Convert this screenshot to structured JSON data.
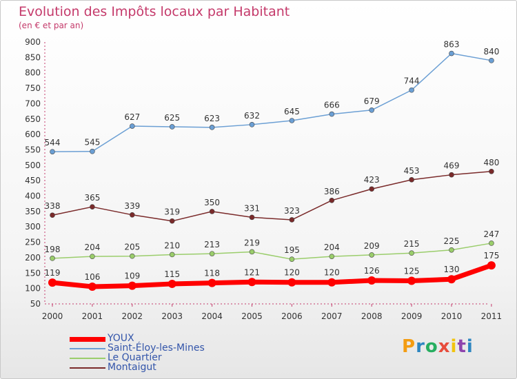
{
  "header": {
    "title": "Evolution des Impôts locaux par Habitant",
    "subtitle": "(en € et par an)"
  },
  "chart_data": {
    "type": "line",
    "title": "Evolution des Impôts locaux par Habitant",
    "subtitle": "(en € et par an)",
    "xlabel": "",
    "ylabel": "",
    "x": [
      "2000",
      "2001",
      "2002",
      "2003",
      "2004",
      "2005",
      "2006",
      "2007",
      "2008",
      "2009",
      "2010",
      "2011"
    ],
    "ylim": [
      50,
      900
    ],
    "yticks": [
      50,
      100,
      150,
      200,
      250,
      300,
      350,
      400,
      450,
      500,
      550,
      600,
      650,
      700,
      750,
      800,
      850,
      900
    ],
    "grid": false,
    "legend_position": "bottom-left",
    "series": [
      {
        "name": "YOUX",
        "color": "#ff0000",
        "values": [
          119,
          106,
          109,
          115,
          118,
          121,
          120,
          120,
          126,
          125,
          130,
          175
        ]
      },
      {
        "name": "Saint-Éloy-les-Mines",
        "color": "#6b9fd4",
        "values": [
          544,
          545,
          627,
          625,
          623,
          632,
          645,
          666,
          679,
          744,
          863,
          840
        ]
      },
      {
        "name": "Le Quartier",
        "color": "#9acd6b",
        "values": [
          198,
          204,
          205,
          210,
          213,
          219,
          195,
          204,
          209,
          215,
          225,
          247
        ]
      },
      {
        "name": "Montaigut",
        "color": "#7a2a2a",
        "values": [
          338,
          365,
          339,
          319,
          350,
          331,
          323,
          386,
          423,
          453,
          469,
          480
        ]
      }
    ]
  },
  "branding": {
    "logo_text": "Proxiti",
    "logo_colors": [
      "#f39c12",
      "#2e86c1",
      "#27ae60",
      "#e74c3c",
      "#f1c40f",
      "#8e44ad",
      "#2e86c1"
    ]
  }
}
